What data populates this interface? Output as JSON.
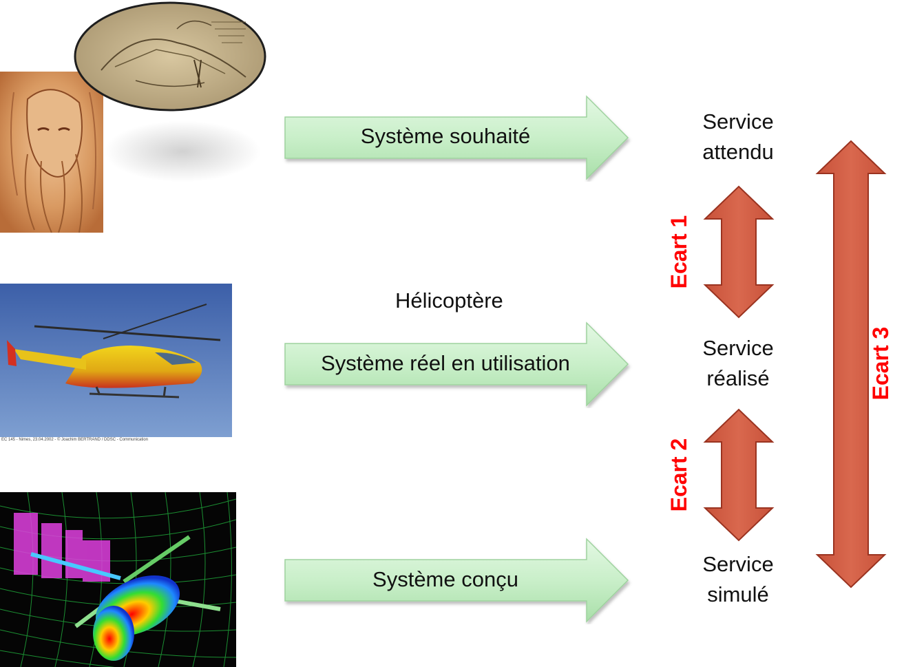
{
  "rows": [
    {
      "arrow_label": "Système souhaité",
      "service_line1": "Service",
      "service_line2": "attendu"
    },
    {
      "arrow_label": "Système réel en utilisation",
      "title": "Hélicoptère",
      "service_line1": "Service",
      "service_line2": "réalisé"
    },
    {
      "arrow_label": "Système conçu",
      "service_line1": "Service",
      "service_line2": "simulé"
    }
  ],
  "ecarts": {
    "ecart1": "Ecart 1",
    "ecart2": "Ecart 2",
    "ecart3": "Ecart 3"
  },
  "photo_caption": "EC 145 - Nimes, 23.04.2002 - © Joachim BERTRAND / DDSC - Communication",
  "colors": {
    "arrow_fill": "#c9efc9",
    "double_arrow_fill": "#d4634a",
    "ecart_text": "#ff0000"
  }
}
